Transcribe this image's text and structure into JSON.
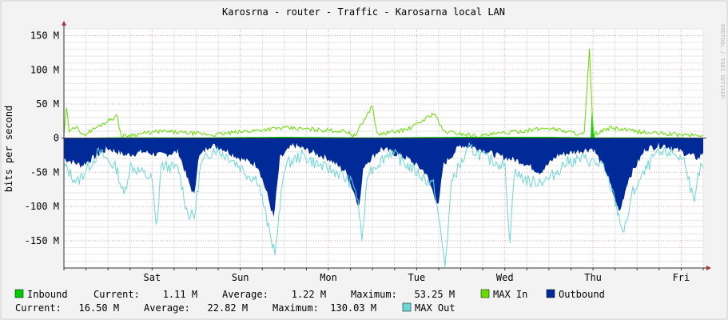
{
  "chart_data": {
    "type": "area",
    "title": "Karosrna - router - Traffic - Karosarna local LAN",
    "ylabel": "bits per second",
    "watermark": "RRDTOOL / TOBI OETIKER",
    "ylim": [
      -190,
      160
    ],
    "y_unit": "M",
    "y_ticks": [
      {
        "value": 150,
        "label": "150 M"
      },
      {
        "value": 100,
        "label": "100 M"
      },
      {
        "value": 50,
        "label": "50 M"
      },
      {
        "value": 0,
        "label": "0"
      },
      {
        "value": -50,
        "label": "-50 M"
      },
      {
        "value": -100,
        "label": "-100 M"
      },
      {
        "value": -150,
        "label": "-150 M"
      }
    ],
    "x_labels": [
      {
        "label": "Sat",
        "pos": 1
      },
      {
        "label": "Sun",
        "pos": 2
      },
      {
        "label": "Mon",
        "pos": 3
      },
      {
        "label": "Tue",
        "pos": 4
      },
      {
        "label": "Wed",
        "pos": 5
      },
      {
        "label": "Thu",
        "pos": 6
      },
      {
        "label": "Fri",
        "pos": 7
      }
    ],
    "xlim": [
      0,
      7.25
    ],
    "grid": true,
    "series": [
      {
        "name": "Inbound",
        "color": "#00cc00"
      },
      {
        "name": "MAX In",
        "color": "#66dd00"
      },
      {
        "name": "Outbound",
        "color": "#002a97"
      },
      {
        "name": "MAX Out",
        "color": "#6cd7d8"
      }
    ],
    "keypoints": {
      "inbound": [
        [
          0,
          0
        ],
        [
          0.5,
          1
        ],
        [
          1.5,
          1
        ],
        [
          2.5,
          2
        ],
        [
          3.5,
          1
        ],
        [
          4.5,
          2
        ],
        [
          5.5,
          2
        ],
        [
          5.98,
          1
        ],
        [
          5.99,
          55
        ],
        [
          6.01,
          1
        ],
        [
          7,
          1
        ],
        [
          7.25,
          0
        ]
      ],
      "max_in": [
        [
          0,
          5
        ],
        [
          0.03,
          45
        ],
        [
          0.06,
          8
        ],
        [
          0.15,
          20
        ],
        [
          0.2,
          3
        ],
        [
          0.6,
          33
        ],
        [
          0.65,
          3
        ],
        [
          1.1,
          10
        ],
        [
          1.7,
          5
        ],
        [
          2.3,
          13
        ],
        [
          2.5,
          15
        ],
        [
          3.2,
          10
        ],
        [
          3.3,
          3
        ],
        [
          3.5,
          48
        ],
        [
          3.55,
          5
        ],
        [
          3.9,
          13
        ],
        [
          4.0,
          20
        ],
        [
          4.2,
          37
        ],
        [
          4.3,
          10
        ],
        [
          4.7,
          3
        ],
        [
          5.3,
          12
        ],
        [
          5.5,
          15
        ],
        [
          5.9,
          5
        ],
        [
          5.96,
          130
        ],
        [
          6.0,
          5
        ],
        [
          6.2,
          15
        ],
        [
          6.6,
          8
        ],
        [
          7.0,
          5
        ],
        [
          7.25,
          4
        ]
      ],
      "outbound": [
        [
          0,
          -30
        ],
        [
          0.2,
          -40
        ],
        [
          0.5,
          -15
        ],
        [
          0.7,
          -25
        ],
        [
          0.9,
          -20
        ],
        [
          1.1,
          -25
        ],
        [
          1.3,
          -20
        ],
        [
          1.4,
          -60
        ],
        [
          1.48,
          -85
        ],
        [
          1.52,
          -30
        ],
        [
          1.65,
          -10
        ],
        [
          1.8,
          -15
        ],
        [
          2.0,
          -30
        ],
        [
          2.2,
          -40
        ],
        [
          2.3,
          -80
        ],
        [
          2.38,
          -118
        ],
        [
          2.45,
          -30
        ],
        [
          2.6,
          -10
        ],
        [
          2.8,
          -20
        ],
        [
          3.0,
          -30
        ],
        [
          3.2,
          -50
        ],
        [
          3.35,
          -100
        ],
        [
          3.4,
          -40
        ],
        [
          3.6,
          -15
        ],
        [
          3.9,
          -30
        ],
        [
          4.1,
          -50
        ],
        [
          4.25,
          -100
        ],
        [
          4.3,
          -40
        ],
        [
          4.5,
          -10
        ],
        [
          4.7,
          -15
        ],
        [
          4.9,
          -25
        ],
        [
          5.2,
          -35
        ],
        [
          5.4,
          -50
        ],
        [
          5.6,
          -25
        ],
        [
          5.8,
          -20
        ],
        [
          6.0,
          -15
        ],
        [
          6.15,
          -50
        ],
        [
          6.3,
          -110
        ],
        [
          6.4,
          -60
        ],
        [
          6.6,
          -15
        ],
        [
          6.8,
          -10
        ],
        [
          7.0,
          -20
        ],
        [
          7.2,
          -30
        ],
        [
          7.25,
          -20
        ]
      ],
      "max_out": [
        [
          0,
          -40
        ],
        [
          0.15,
          -65
        ],
        [
          0.4,
          -20
        ],
        [
          0.6,
          -45
        ],
        [
          0.68,
          -85
        ],
        [
          0.75,
          -40
        ],
        [
          1.0,
          -60
        ],
        [
          1.05,
          -140
        ],
        [
          1.1,
          -40
        ],
        [
          1.3,
          -45
        ],
        [
          1.4,
          -110
        ],
        [
          1.48,
          -115
        ],
        [
          1.55,
          -40
        ],
        [
          1.7,
          -15
        ],
        [
          1.9,
          -30
        ],
        [
          2.1,
          -55
        ],
        [
          2.2,
          -60
        ],
        [
          2.35,
          -150
        ],
        [
          2.4,
          -165
        ],
        [
          2.5,
          -40
        ],
        [
          2.7,
          -25
        ],
        [
          2.9,
          -40
        ],
        [
          3.1,
          -50
        ],
        [
          3.3,
          -70
        ],
        [
          3.35,
          -110
        ],
        [
          3.38,
          -150
        ],
        [
          3.45,
          -50
        ],
        [
          3.7,
          -20
        ],
        [
          3.9,
          -40
        ],
        [
          4.05,
          -55
        ],
        [
          4.2,
          -70
        ],
        [
          4.3,
          -165
        ],
        [
          4.32,
          -190
        ],
        [
          4.4,
          -60
        ],
        [
          4.6,
          -15
        ],
        [
          4.8,
          -30
        ],
        [
          5.0,
          -40
        ],
        [
          5.06,
          -155
        ],
        [
          5.1,
          -50
        ],
        [
          5.3,
          -65
        ],
        [
          5.5,
          -60
        ],
        [
          5.7,
          -35
        ],
        [
          5.9,
          -30
        ],
        [
          6.1,
          -40
        ],
        [
          6.2,
          -70
        ],
        [
          6.35,
          -140
        ],
        [
          6.45,
          -80
        ],
        [
          6.7,
          -25
        ],
        [
          6.9,
          -20
        ],
        [
          7.05,
          -35
        ],
        [
          7.15,
          -100
        ],
        [
          7.2,
          -50
        ],
        [
          7.25,
          -40
        ]
      ]
    },
    "legend": {
      "row1": {
        "inbound_label": "Inbound",
        "current": "Current:    1.11 M",
        "average": "Average:    1.22 M",
        "maximum": "Maximum:   53.25 M",
        "max_in_label": "MAX In",
        "outbound_label": "Outbound"
      },
      "row2": {
        "current": "Current:   16.50 M",
        "average": "Average:   22.82 M",
        "maximum": "Maximum:  130.03 M",
        "max_out_label": "MAX Out"
      }
    }
  }
}
